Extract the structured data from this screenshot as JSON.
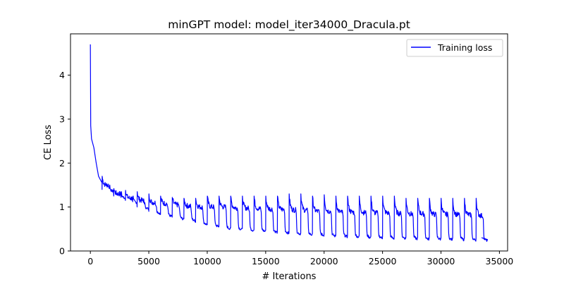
{
  "chart_data": {
    "type": "line",
    "title": "minGPT model: model_iter34000_Dracula.pt",
    "xlabel": "# Iterations",
    "ylabel": "CE Loss",
    "xlim": [
      -1700,
      35700
    ],
    "ylim": [
      0,
      4.94
    ],
    "xticks": [
      0,
      5000,
      10000,
      15000,
      20000,
      25000,
      30000,
      35000
    ],
    "xtick_labels": [
      "0",
      "5000",
      "10000",
      "15000",
      "20000",
      "25000",
      "30000",
      "35000"
    ],
    "yticks": [
      0,
      1,
      2,
      3,
      4
    ],
    "ytick_labels": [
      "0",
      "1",
      "2",
      "3",
      "4"
    ],
    "grid": false,
    "legend_position": "top-right",
    "series": [
      {
        "name": "Training loss",
        "color": "#0000ff",
        "description_points": {
          "initial": [
            [
              0,
              4.7
            ],
            [
              30,
              2.85
            ],
            [
              100,
              2.55
            ],
            [
              300,
              2.35
            ],
            [
              500,
              2.0
            ],
            [
              700,
              1.7
            ],
            [
              1000,
              1.55
            ]
          ],
          "epoch_length": 1000,
          "epoch_peak_loss": [
            1.7,
            1.42,
            1.38,
            1.35,
            1.3,
            1.25,
            1.22,
            1.2,
            1.2,
            1.25,
            1.25,
            1.25,
            1.25,
            1.25,
            1.25,
            1.25,
            1.3,
            1.3,
            1.25,
            1.28,
            1.25,
            1.25,
            1.25,
            1.25,
            1.25,
            1.25,
            1.2,
            1.2,
            1.2,
            1.2,
            1.2,
            1.2,
            1.2
          ],
          "epoch_plateau_loss": [
            1.5,
            1.3,
            1.2,
            1.15,
            1.1,
            1.08,
            1.05,
            1.02,
            1.0,
            1.0,
            1.0,
            0.98,
            0.97,
            0.96,
            0.95,
            0.94,
            0.93,
            0.92,
            0.9,
            0.9,
            0.88,
            0.88,
            0.87,
            0.86,
            0.86,
            0.85,
            0.84,
            0.84,
            0.83,
            0.83,
            0.82,
            0.82,
            0.8
          ],
          "epoch_trough_loss": [
            1.35,
            1.2,
            1.1,
            0.95,
            0.85,
            0.78,
            0.72,
            0.68,
            0.6,
            0.55,
            0.5,
            0.48,
            0.46,
            0.44,
            0.42,
            0.4,
            0.38,
            0.36,
            0.35,
            0.33,
            0.32,
            0.31,
            0.3,
            0.29,
            0.28,
            0.28,
            0.27,
            0.26,
            0.26,
            0.25,
            0.25,
            0.24,
            0.23
          ],
          "final": [
            [
              33500,
              0.3
            ],
            [
              34000,
              0.25
            ]
          ]
        }
      }
    ]
  }
}
